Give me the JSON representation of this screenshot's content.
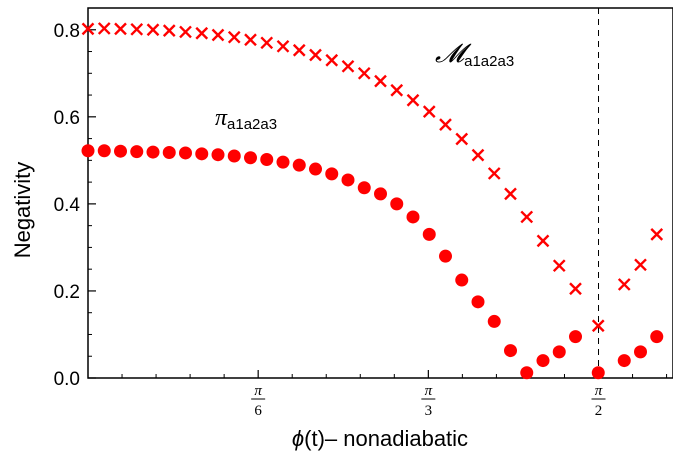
{
  "chart_data": {
    "type": "scatter",
    "title": "",
    "xlabel": {
      "phi": "ϕ",
      "rest": "(t)– nonadiabatic"
    },
    "ylabel": "Negativity",
    "xlim": [
      0.0,
      1.8
    ],
    "ylim": [
      0.0,
      0.85
    ],
    "xticks": [
      {
        "value": 0.5236,
        "num": "π",
        "den": "6"
      },
      {
        "value": 1.0472,
        "num": "π",
        "den": "3"
      },
      {
        "value": 1.5708,
        "num": "π",
        "den": "2"
      }
    ],
    "yticks": [
      {
        "value": 0.0,
        "label": "0.0"
      },
      {
        "value": 0.2,
        "label": "0.2"
      },
      {
        "value": 0.4,
        "label": "0.4"
      },
      {
        "value": 0.6,
        "label": "0.6"
      },
      {
        "value": 0.8,
        "label": "0.8"
      }
    ],
    "vline": 1.5708,
    "grid": false,
    "series": [
      {
        "name": "𝓜",
        "name_sub": "a1a2a3",
        "marker": "x",
        "color": "#ff0000",
        "x": [
          0.0,
          0.05,
          0.1,
          0.15,
          0.2,
          0.25,
          0.3,
          0.35,
          0.4,
          0.45,
          0.5,
          0.55,
          0.6,
          0.65,
          0.7,
          0.75,
          0.8,
          0.85,
          0.9,
          0.95,
          1.0,
          1.05,
          1.1,
          1.15,
          1.2,
          1.25,
          1.3,
          1.35,
          1.4,
          1.45,
          1.5,
          1.57,
          1.65,
          1.7,
          1.75
        ],
        "y": [
          0.802,
          0.803,
          0.802,
          0.801,
          0.8,
          0.798,
          0.795,
          0.792,
          0.788,
          0.783,
          0.777,
          0.77,
          0.762,
          0.753,
          0.742,
          0.73,
          0.716,
          0.7,
          0.682,
          0.661,
          0.638,
          0.612,
          0.582,
          0.549,
          0.512,
          0.47,
          0.423,
          0.37,
          0.315,
          0.258,
          0.205,
          0.12,
          0.215,
          0.26,
          0.33
        ]
      },
      {
        "name": "π",
        "name_sub": "a1a2a3",
        "marker": "circle",
        "color": "#ff0000",
        "x": [
          0.0,
          0.05,
          0.1,
          0.15,
          0.2,
          0.25,
          0.3,
          0.35,
          0.4,
          0.45,
          0.5,
          0.55,
          0.6,
          0.65,
          0.7,
          0.75,
          0.8,
          0.85,
          0.9,
          0.95,
          1.0,
          1.05,
          1.1,
          1.15,
          1.2,
          1.25,
          1.3,
          1.35,
          1.4,
          1.45,
          1.5,
          1.57,
          1.65,
          1.7,
          1.75
        ],
        "y": [
          0.522,
          0.522,
          0.521,
          0.52,
          0.519,
          0.518,
          0.517,
          0.515,
          0.513,
          0.51,
          0.506,
          0.502,
          0.496,
          0.489,
          0.48,
          0.469,
          0.455,
          0.437,
          0.423,
          0.4,
          0.37,
          0.33,
          0.28,
          0.225,
          0.175,
          0.13,
          0.063,
          0.012,
          0.04,
          0.06,
          0.095,
          0.012,
          0.04,
          0.06,
          0.095
        ]
      }
    ]
  }
}
